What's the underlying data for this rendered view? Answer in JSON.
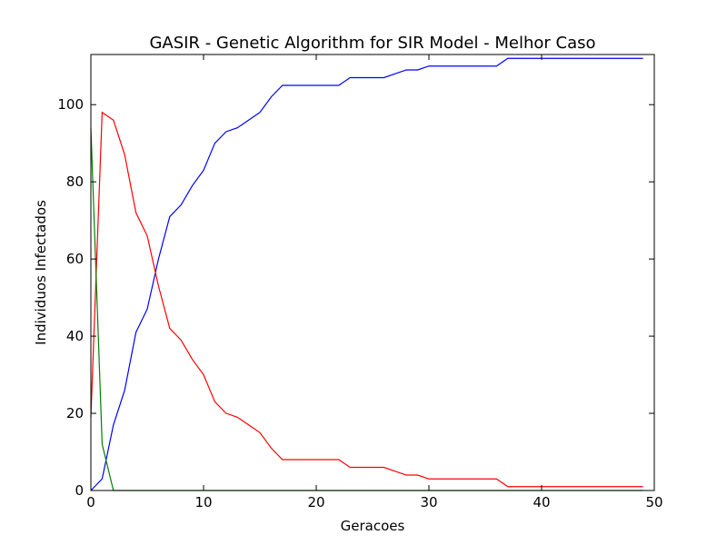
{
  "chart_data": {
    "type": "line",
    "title": "GASIR - Genetic Algorithm for SIR Model - Melhor Caso",
    "xlabel": "Geracoes",
    "ylabel": "Individuos Infectados",
    "xlim": [
      0,
      50
    ],
    "ylim": [
      0,
      113
    ],
    "xticks": [
      0,
      10,
      20,
      30,
      40,
      50
    ],
    "yticks": [
      0,
      20,
      40,
      60,
      80,
      100
    ],
    "xtick_labels": [
      "0",
      "10",
      "20",
      "30",
      "40",
      "50"
    ],
    "ytick_labels": [
      "0",
      "20",
      "40",
      "60",
      "80",
      "100"
    ],
    "grid": false,
    "legend": "none",
    "x": [
      0,
      1,
      2,
      3,
      4,
      5,
      6,
      7,
      8,
      9,
      10,
      11,
      12,
      13,
      14,
      15,
      16,
      17,
      18,
      19,
      20,
      21,
      22,
      23,
      24,
      25,
      26,
      27,
      28,
      29,
      30,
      31,
      32,
      33,
      34,
      35,
      36,
      37,
      38,
      39,
      40,
      41,
      42,
      43,
      44,
      45,
      46,
      47,
      48,
      49
    ],
    "series": [
      {
        "color": "#0000ff",
        "values": [
          0,
          3,
          17,
          26,
          41,
          47,
          60,
          71,
          74,
          79,
          83,
          90,
          93,
          94,
          96,
          98,
          102,
          105,
          105,
          105,
          105,
          105,
          105,
          107,
          107,
          107,
          107,
          108,
          109,
          109,
          110,
          110,
          110,
          110,
          110,
          110,
          110,
          112,
          112,
          112,
          112,
          112,
          112,
          112,
          112,
          112,
          112,
          112,
          112,
          112
        ]
      },
      {
        "color": "#ff0000",
        "values": [
          19,
          98,
          96,
          87,
          72,
          66,
          53,
          42,
          39,
          34,
          30,
          23,
          20,
          19,
          17,
          15,
          11,
          8,
          8,
          8,
          8,
          8,
          8,
          6,
          6,
          6,
          6,
          5,
          4,
          4,
          3,
          3,
          3,
          3,
          3,
          3,
          3,
          1,
          1,
          1,
          1,
          1,
          1,
          1,
          1,
          1,
          1,
          1,
          1,
          1
        ]
      },
      {
        "color": "#008000",
        "values": [
          94,
          12,
          0,
          0,
          0,
          0,
          0,
          0,
          0,
          0,
          0,
          0,
          0,
          0,
          0,
          0,
          0,
          0,
          0,
          0,
          0,
          0,
          0,
          0,
          0,
          0,
          0,
          0,
          0,
          0,
          0,
          0,
          0,
          0,
          0,
          0,
          0,
          0,
          0,
          0,
          0,
          0,
          0,
          0,
          0,
          0,
          0,
          0,
          0,
          0
        ]
      }
    ]
  }
}
